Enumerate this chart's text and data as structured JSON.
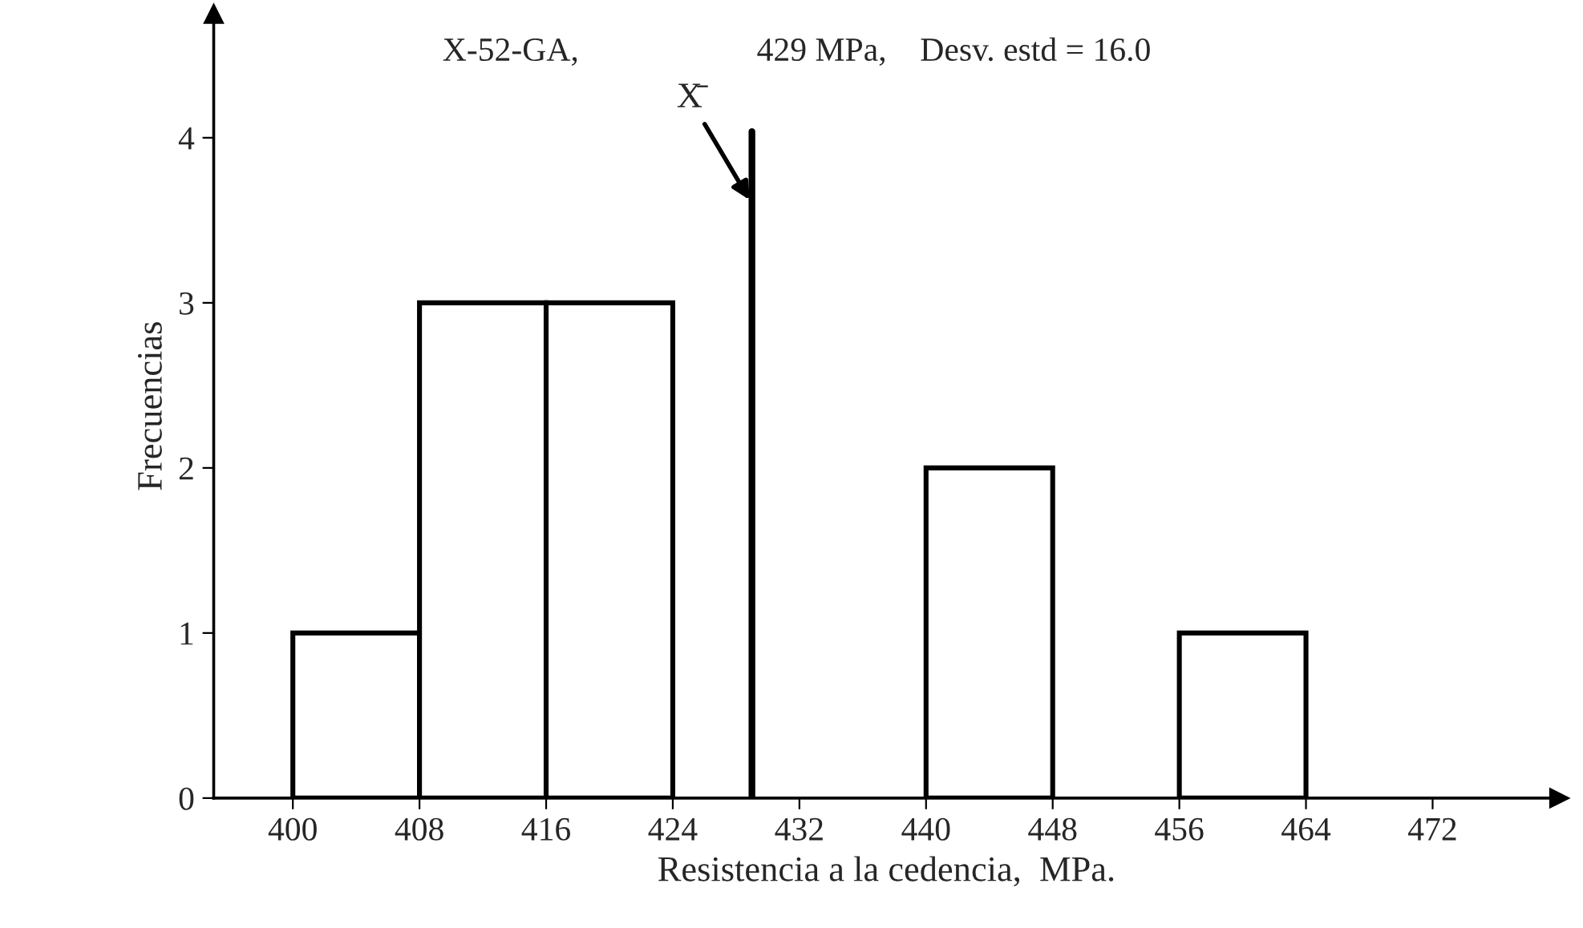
{
  "chart_data": {
    "type": "histogram",
    "title": "X-52-GA,",
    "xlabel": "Resistencia a la cedencia,  MPa.",
    "ylabel": "Frecuencias",
    "bins": [
      400,
      408,
      416,
      424,
      432,
      440,
      448,
      456,
      464,
      472
    ],
    "values": [
      1,
      3,
      3,
      0,
      0,
      2,
      0,
      1,
      0
    ],
    "color": "#ffffff",
    "xlim": [
      395,
      480
    ],
    "ylim": [
      0,
      4.75
    ],
    "xticks": [
      400,
      408,
      416,
      424,
      432,
      440,
      448,
      456,
      464,
      472
    ],
    "yticks": [
      0,
      1,
      2,
      3,
      4
    ],
    "ref_lines": [
      {
        "axis": "x",
        "value": 429,
        "label": "429 MPa,    Desv. estd = 16.0",
        "color": "#000000"
      }
    ],
    "annotations": [
      {
        "text": "X̄",
        "x": 429,
        "y": 3.6
      }
    ],
    "grid": false,
    "legend": false
  }
}
